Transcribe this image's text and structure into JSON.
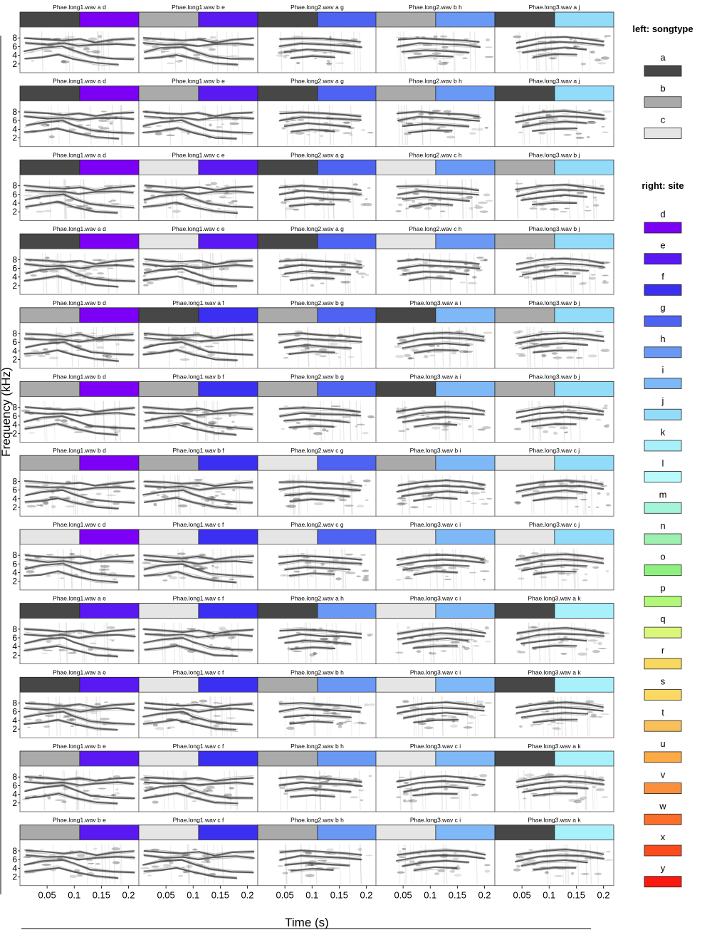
{
  "chart_data": {
    "type": "spectrogram-catalog",
    "xlabel": "Time (s)",
    "ylabel": "Frequency (kHz)",
    "x_ticks": [
      "0.05",
      "0.1",
      "0.15",
      "0.2"
    ],
    "y_ticks": [
      "2",
      "4",
      "6",
      "8"
    ],
    "legend": {
      "placement": "right",
      "groups": [
        {
          "title": "left: songtype",
          "items": [
            {
              "label": "a",
              "color": "#474747"
            },
            {
              "label": "b",
              "color": "#aaaaaa"
            },
            {
              "label": "c",
              "color": "#e5e5e5"
            }
          ]
        },
        {
          "title": "right: site",
          "items": [
            {
              "label": "d",
              "color": "#7b00f5"
            },
            {
              "label": "e",
              "color": "#5a18f2"
            },
            {
              "label": "f",
              "color": "#3b2ff2"
            },
            {
              "label": "g",
              "color": "#4f63f2"
            },
            {
              "label": "h",
              "color": "#6a98f5"
            },
            {
              "label": "i",
              "color": "#7fb8f7"
            },
            {
              "label": "j",
              "color": "#92dcf9"
            },
            {
              "label": "k",
              "color": "#a9f1fa"
            },
            {
              "label": "l",
              "color": "#b9fbfb"
            },
            {
              "label": "m",
              "color": "#a3f4d8"
            },
            {
              "label": "n",
              "color": "#9df0b0"
            },
            {
              "label": "o",
              "color": "#8ef07f"
            },
            {
              "label": "p",
              "color": "#b3f77a"
            },
            {
              "label": "q",
              "color": "#dbf77a"
            },
            {
              "label": "r",
              "color": "#f9d860"
            },
            {
              "label": "s",
              "color": "#fbd863"
            },
            {
              "label": "t",
              "color": "#f9c05a"
            },
            {
              "label": "u",
              "color": "#fbaa46"
            },
            {
              "label": "v",
              "color": "#fb8f3c"
            },
            {
              "label": "w",
              "color": "#fa6f2c"
            },
            {
              "label": "x",
              "color": "#fa4a1e"
            },
            {
              "label": "y",
              "color": "#f91a12"
            }
          ]
        }
      ]
    },
    "panels": [
      [
        {
          "title": "Phae.long1.wav a d",
          "songtype": "a",
          "site": "d",
          "file": 1
        },
        {
          "title": "Phae.long1.wav b e",
          "songtype": "b",
          "site": "e",
          "file": 1
        },
        {
          "title": "Phae.long2.wav a g",
          "songtype": "a",
          "site": "g",
          "file": 2
        },
        {
          "title": "Phae.long2.wav b h",
          "songtype": "b",
          "site": "h",
          "file": 2
        },
        {
          "title": "Phae.long3.wav a j",
          "songtype": "a",
          "site": "j",
          "file": 3
        }
      ],
      [
        {
          "title": "Phae.long1.wav a d",
          "songtype": "a",
          "site": "d",
          "file": 1
        },
        {
          "title": "Phae.long1.wav b e",
          "songtype": "b",
          "site": "e",
          "file": 1
        },
        {
          "title": "Phae.long2.wav a g",
          "songtype": "a",
          "site": "g",
          "file": 2
        },
        {
          "title": "Phae.long2.wav b h",
          "songtype": "b",
          "site": "h",
          "file": 2
        },
        {
          "title": "Phae.long3.wav a j",
          "songtype": "a",
          "site": "j",
          "file": 3
        }
      ],
      [
        {
          "title": "Phae.long1.wav a d",
          "songtype": "a",
          "site": "d",
          "file": 1
        },
        {
          "title": "Phae.long1.wav c e",
          "songtype": "c",
          "site": "e",
          "file": 1
        },
        {
          "title": "Phae.long2.wav a g",
          "songtype": "a",
          "site": "g",
          "file": 2
        },
        {
          "title": "Phae.long2.wav c h",
          "songtype": "c",
          "site": "h",
          "file": 2
        },
        {
          "title": "Phae.long3.wav b j",
          "songtype": "b",
          "site": "j",
          "file": 3
        }
      ],
      [
        {
          "title": "Phae.long1.wav a d",
          "songtype": "a",
          "site": "d",
          "file": 1
        },
        {
          "title": "Phae.long1.wav c e",
          "songtype": "c",
          "site": "e",
          "file": 1
        },
        {
          "title": "Phae.long2.wav a g",
          "songtype": "a",
          "site": "g",
          "file": 2
        },
        {
          "title": "Phae.long2.wav c h",
          "songtype": "c",
          "site": "h",
          "file": 2
        },
        {
          "title": "Phae.long3.wav b j",
          "songtype": "b",
          "site": "j",
          "file": 3
        }
      ],
      [
        {
          "title": "Phae.long1.wav b d",
          "songtype": "b",
          "site": "d",
          "file": 1
        },
        {
          "title": "Phae.long1.wav a f",
          "songtype": "a",
          "site": "f",
          "file": 1
        },
        {
          "title": "Phae.long2.wav b g",
          "songtype": "b",
          "site": "g",
          "file": 2
        },
        {
          "title": "Phae.long3.wav a i",
          "songtype": "a",
          "site": "i",
          "file": 3
        },
        {
          "title": "Phae.long3.wav b j",
          "songtype": "b",
          "site": "j",
          "file": 3
        }
      ],
      [
        {
          "title": "Phae.long1.wav b d",
          "songtype": "b",
          "site": "d",
          "file": 1
        },
        {
          "title": "Phae.long1.wav b f",
          "songtype": "b",
          "site": "f",
          "file": 1
        },
        {
          "title": "Phae.long2.wav b g",
          "songtype": "b",
          "site": "g",
          "file": 2
        },
        {
          "title": "Phae.long3.wav a i",
          "songtype": "a",
          "site": "i",
          "file": 3
        },
        {
          "title": "Phae.long3.wav b j",
          "songtype": "b",
          "site": "j",
          "file": 3
        }
      ],
      [
        {
          "title": "Phae.long1.wav b d",
          "songtype": "b",
          "site": "d",
          "file": 1
        },
        {
          "title": "Phae.long1.wav b f",
          "songtype": "b",
          "site": "f",
          "file": 1
        },
        {
          "title": "Phae.long2.wav c g",
          "songtype": "c",
          "site": "g",
          "file": 2
        },
        {
          "title": "Phae.long3.wav b i",
          "songtype": "b",
          "site": "i",
          "file": 3
        },
        {
          "title": "Phae.long3.wav c j",
          "songtype": "c",
          "site": "j",
          "file": 3
        }
      ],
      [
        {
          "title": "Phae.long1.wav c d",
          "songtype": "c",
          "site": "d",
          "file": 1
        },
        {
          "title": "Phae.long1.wav c f",
          "songtype": "c",
          "site": "f",
          "file": 1
        },
        {
          "title": "Phae.long2.wav c g",
          "songtype": "c",
          "site": "g",
          "file": 2
        },
        {
          "title": "Phae.long3.wav c i",
          "songtype": "c",
          "site": "i",
          "file": 3
        },
        {
          "title": "Phae.long3.wav c j",
          "songtype": "c",
          "site": "j",
          "file": 3
        }
      ],
      [
        {
          "title": "Phae.long1.wav a e",
          "songtype": "a",
          "site": "e",
          "file": 1
        },
        {
          "title": "Phae.long1.wav c f",
          "songtype": "c",
          "site": "f",
          "file": 1
        },
        {
          "title": "Phae.long2.wav a h",
          "songtype": "a",
          "site": "h",
          "file": 2
        },
        {
          "title": "Phae.long3.wav c i",
          "songtype": "c",
          "site": "i",
          "file": 3
        },
        {
          "title": "Phae.long3.wav a k",
          "songtype": "a",
          "site": "k",
          "file": 3
        }
      ],
      [
        {
          "title": "Phae.long1.wav a e",
          "songtype": "a",
          "site": "e",
          "file": 1
        },
        {
          "title": "Phae.long1.wav c f",
          "songtype": "c",
          "site": "f",
          "file": 1
        },
        {
          "title": "Phae.long2.wav b h",
          "songtype": "b",
          "site": "h",
          "file": 2
        },
        {
          "title": "Phae.long3.wav c i",
          "songtype": "c",
          "site": "i",
          "file": 3
        },
        {
          "title": "Phae.long3.wav a k",
          "songtype": "a",
          "site": "k",
          "file": 3
        }
      ],
      [
        {
          "title": "Phae.long1.wav b e",
          "songtype": "b",
          "site": "e",
          "file": 1
        },
        {
          "title": "Phae.long1.wav c f",
          "songtype": "c",
          "site": "f",
          "file": 1
        },
        {
          "title": "Phae.long2.wav b h",
          "songtype": "b",
          "site": "h",
          "file": 2
        },
        {
          "title": "Phae.long3.wav c i",
          "songtype": "c",
          "site": "i",
          "file": 3
        },
        {
          "title": "Phae.long3.wav a k",
          "songtype": "a",
          "site": "k",
          "file": 3
        }
      ],
      [
        {
          "title": "Phae.long1.wav b e",
          "songtype": "b",
          "site": "e",
          "file": 1
        },
        {
          "title": "Phae.long1.wav c f",
          "songtype": "c",
          "site": "f",
          "file": 1
        },
        {
          "title": "Phae.long2.wav b h",
          "songtype": "b",
          "site": "h",
          "file": 2
        },
        {
          "title": "Phae.long3.wav c i",
          "songtype": "c",
          "site": "i",
          "file": 3
        },
        {
          "title": "Phae.long3.wav a k",
          "songtype": "a",
          "site": "k",
          "file": 3
        }
      ]
    ]
  }
}
